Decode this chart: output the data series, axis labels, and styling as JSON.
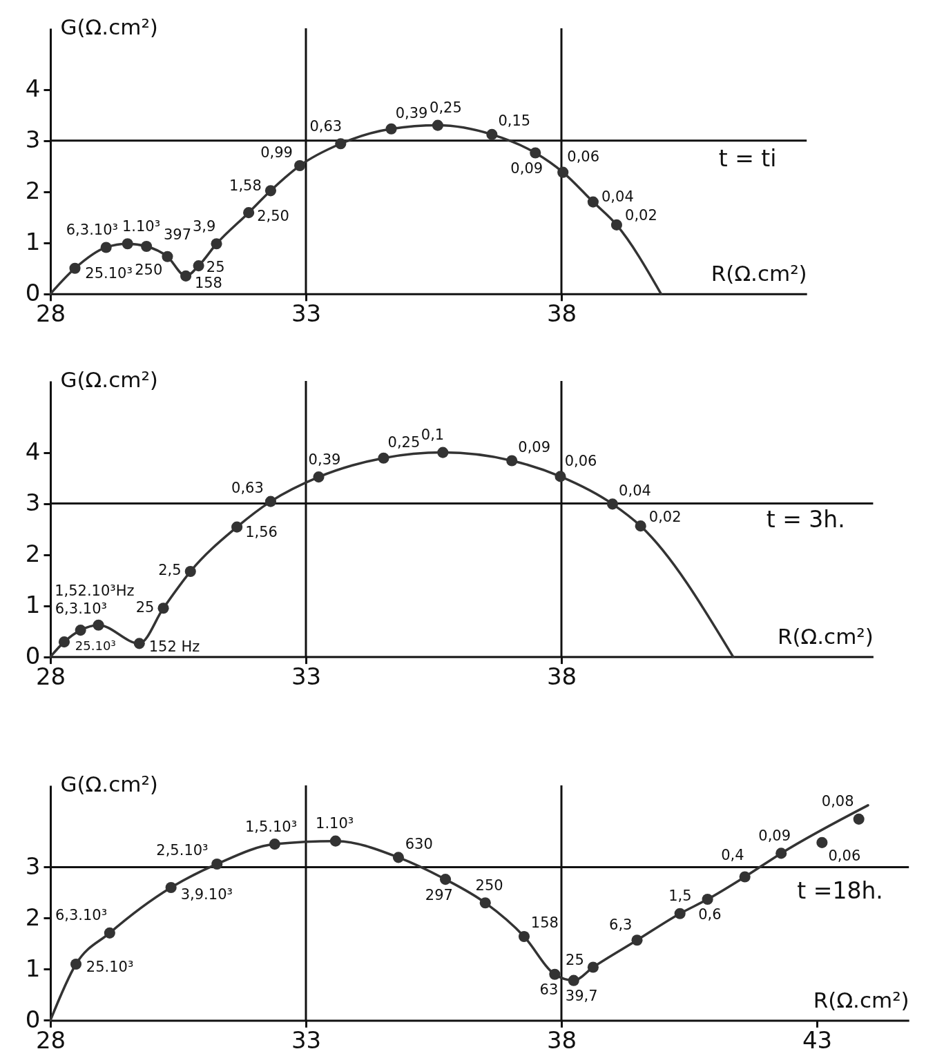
{
  "chart_data": [
    {
      "type": "scatter",
      "xlabel": "R(Ω.cm²)",
      "ylabel": "G(Ω.cm²)",
      "xlim": [
        28,
        42.8
      ],
      "ylim": [
        0,
        5.2
      ],
      "xticks": [
        28,
        33,
        38
      ],
      "yticks": [
        0,
        1,
        2,
        3,
        4
      ],
      "ref_lines": [
        {
          "axis": "x",
          "value": 33
        },
        {
          "axis": "x",
          "value": 38
        },
        {
          "axis": "y",
          "value": 3
        }
      ],
      "series": [
        {
          "type": "line",
          "color": "#333333",
          "marker": "none",
          "x": [
            28,
            28.48,
            29.09,
            29.51,
            29.88,
            30.29,
            30.65,
            30.9,
            31.25,
            31.88,
            32.31,
            32.88,
            33.68,
            34.67,
            35.58,
            36.64,
            37.49,
            38.03,
            38.62,
            39.08,
            39.95
          ],
          "values": [
            0,
            0.5,
            0.91,
            0.98,
            0.93,
            0.73,
            0.35,
            0.55,
            0.98,
            1.59,
            2.02,
            2.51,
            2.94,
            3.23,
            3.3,
            3.12,
            2.76,
            2.38,
            1.8,
            1.35,
            0
          ]
        },
        {
          "color": "#333333",
          "marker": "circle",
          "x": [
            28.48,
            29.09,
            29.51,
            29.88,
            30.29,
            30.65,
            30.9,
            31.25,
            31.88,
            32.31,
            32.88,
            33.68,
            34.67,
            35.58,
            36.64,
            37.49,
            38.03,
            38.62,
            39.08
          ],
          "values": [
            0.5,
            0.91,
            0.98,
            0.93,
            0.73,
            0.35,
            0.55,
            0.98,
            1.59,
            2.02,
            2.51,
            2.94,
            3.23,
            3.3,
            3.12,
            2.76,
            2.38,
            1.8,
            1.35
          ]
        }
      ],
      "annotations": [
        "t = ti",
        {
          "text": "25.10³",
          "x": 28.48,
          "y": 0.5
        },
        {
          "text": "6,3.10³",
          "x": 29.09,
          "y": 0.91
        },
        {
          "text": "1.10³",
          "x": 29.51,
          "y": 0.98
        },
        {
          "text": "397",
          "x": 29.88,
          "y": 0.93
        },
        {
          "text": "250",
          "x": 30.29,
          "y": 0.73
        },
        {
          "text": "158",
          "x": 30.65,
          "y": 0.35
        },
        {
          "text": "25",
          "x": 30.9,
          "y": 0.55
        },
        {
          "text": "3,9",
          "x": 31.25,
          "y": 0.98
        },
        {
          "text": "2,50",
          "x": 31.88,
          "y": 1.59
        },
        {
          "text": "1,58",
          "x": 32.31,
          "y": 2.02
        },
        {
          "text": "0,99",
          "x": 32.88,
          "y": 2.51
        },
        {
          "text": "0,63",
          "x": 33.68,
          "y": 2.94
        },
        {
          "text": "0,39",
          "x": 34.67,
          "y": 3.23
        },
        {
          "text": "0,25",
          "x": 35.58,
          "y": 3.3
        },
        {
          "text": "0,15",
          "x": 36.64,
          "y": 3.12
        },
        {
          "text": "0,09",
          "x": 37.49,
          "y": 2.76
        },
        {
          "text": "0,06",
          "x": 38.03,
          "y": 2.38
        },
        {
          "text": "0,04",
          "x": 38.62,
          "y": 1.8
        },
        {
          "text": "0,02",
          "x": 39.08,
          "y": 1.35
        }
      ]
    },
    {
      "type": "scatter",
      "xlabel": "R(Ω.cm²)",
      "ylabel": "G(Ω.cm²)",
      "xlim": [
        28,
        44.1
      ],
      "ylim": [
        0,
        5.4
      ],
      "xticks": [
        28,
        33,
        38
      ],
      "yticks": [
        0,
        1,
        2,
        3,
        4
      ],
      "ref_lines": [
        {
          "axis": "x",
          "value": 33
        },
        {
          "axis": "x",
          "value": 38
        },
        {
          "axis": "y",
          "value": 3
        }
      ],
      "series": [
        {
          "type": "line",
          "color": "#333333",
          "marker": "none",
          "x": [
            28,
            28.27,
            28.59,
            28.94,
            29.74,
            30.21,
            30.74,
            31.65,
            32.31,
            33.25,
            34.52,
            35.68,
            37.03,
            37.98,
            39.0,
            39.55,
            41.36
          ],
          "values": [
            0,
            0.29,
            0.52,
            0.62,
            0.26,
            0.95,
            1.67,
            2.54,
            3.04,
            3.52,
            3.89,
            4.0,
            3.84,
            3.53,
            2.99,
            2.56,
            0
          ]
        },
        {
          "color": "#333333",
          "marker": "circle",
          "x": [
            28.27,
            28.59,
            28.94,
            29.74,
            30.21,
            30.74,
            31.65,
            32.31,
            33.25,
            34.52,
            35.68,
            37.03,
            37.98,
            39.0,
            39.55
          ],
          "values": [
            0.29,
            0.52,
            0.62,
            0.26,
            0.95,
            1.67,
            2.54,
            3.04,
            3.52,
            3.89,
            4.0,
            3.84,
            3.53,
            2.99,
            2.56
          ]
        }
      ],
      "annotations": [
        "t = 3h.",
        {
          "text": "25.10³",
          "x": 28.27,
          "y": 0.29
        },
        {
          "text": "6,3.10³",
          "x": 28.59,
          "y": 0.52
        },
        {
          "text": "1,52.10³Hz",
          "x": 28.94,
          "y": 0.62
        },
        {
          "text": "152 Hz",
          "x": 29.74,
          "y": 0.26
        },
        {
          "text": "25",
          "x": 30.21,
          "y": 0.95
        },
        {
          "text": "2,5",
          "x": 30.74,
          "y": 1.67
        },
        {
          "text": "1,56",
          "x": 31.65,
          "y": 2.54
        },
        {
          "text": "0,63",
          "x": 32.31,
          "y": 3.04
        },
        {
          "text": "0,39",
          "x": 33.25,
          "y": 3.52
        },
        {
          "text": "0,25",
          "x": 34.52,
          "y": 3.89
        },
        {
          "text": "0,1",
          "x": 35.68,
          "y": 4.0
        },
        {
          "text": "0,09",
          "x": 37.03,
          "y": 3.84
        },
        {
          "text": "0,06",
          "x": 37.98,
          "y": 3.53
        },
        {
          "text": "0,04",
          "x": 39.0,
          "y": 2.99
        },
        {
          "text": "0,02",
          "x": 39.55,
          "y": 2.56
        }
      ]
    },
    {
      "type": "scatter",
      "xlabel": "R(Ω.cm²)",
      "ylabel": "G(Ω.cm²)",
      "xlim": [
        28,
        44.8
      ],
      "ylim": [
        0,
        4.6
      ],
      "xticks": [
        28,
        33,
        38,
        43
      ],
      "yticks": [
        0,
        1,
        2,
        3
      ],
      "ref_lines": [
        {
          "axis": "x",
          "value": 33
        },
        {
          "axis": "x",
          "value": 38
        },
        {
          "axis": "y",
          "value": 3
        }
      ],
      "series": [
        {
          "type": "line",
          "color": "#333333",
          "marker": "none",
          "x": [
            28,
            28.5,
            29.16,
            30.36,
            31.26,
            32.39,
            33.58,
            34.81,
            35.73,
            36.51,
            37.27,
            37.87,
            38.24,
            38.62,
            39.48,
            40.32,
            40.86,
            41.59,
            42.3,
            44.0
          ],
          "values": [
            0,
            1.1,
            1.71,
            2.6,
            3.06,
            3.45,
            3.51,
            3.19,
            2.76,
            2.3,
            1.64,
            0.9,
            0.78,
            1.04,
            1.57,
            2.09,
            2.37,
            2.81,
            3.27,
            4.21
          ]
        },
        {
          "color": "#333333",
          "marker": "circle",
          "x": [
            28.5,
            29.16,
            30.36,
            31.26,
            32.39,
            33.58,
            34.81,
            35.73,
            36.51,
            37.27,
            37.87,
            38.24,
            38.62,
            39.48,
            40.32,
            40.86,
            41.59,
            42.3,
            43.1,
            43.82
          ],
          "values": [
            1.1,
            1.71,
            2.6,
            3.06,
            3.45,
            3.51,
            3.19,
            2.76,
            2.3,
            1.64,
            0.9,
            0.78,
            1.04,
            1.57,
            2.09,
            2.37,
            2.81,
            3.27,
            3.48,
            3.94
          ]
        }
      ],
      "annotations": [
        "t =18h.",
        {
          "text": "25.10³",
          "x": 28.5,
          "y": 1.1
        },
        {
          "text": "6,3.10³",
          "x": 29.16,
          "y": 1.71
        },
        {
          "text": "3,9.10³",
          "x": 30.36,
          "y": 2.6
        },
        {
          "text": "2,5.10³",
          "x": 31.26,
          "y": 3.06
        },
        {
          "text": "1,5.10³",
          "x": 32.39,
          "y": 3.45
        },
        {
          "text": "1.10³",
          "x": 33.58,
          "y": 3.51
        },
        {
          "text": "630",
          "x": 34.81,
          "y": 3.19
        },
        {
          "text": "297",
          "x": 35.73,
          "y": 2.76
        },
        {
          "text": "250",
          "x": 36.51,
          "y": 2.3
        },
        {
          "text": "158",
          "x": 37.27,
          "y": 1.64
        },
        {
          "text": "63",
          "x": 37.87,
          "y": 0.9
        },
        {
          "text": "39,7",
          "x": 38.24,
          "y": 0.78
        },
        {
          "text": "25",
          "x": 38.62,
          "y": 1.04
        },
        {
          "text": "6,3",
          "x": 39.48,
          "y": 1.57
        },
        {
          "text": "1,5",
          "x": 40.32,
          "y": 2.09
        },
        {
          "text": "0,6",
          "x": 40.86,
          "y": 2.37
        },
        {
          "text": "0,4",
          "x": 41.59,
          "y": 2.81
        },
        {
          "text": "0,09",
          "x": 42.3,
          "y": 3.27
        },
        {
          "text": "0,06",
          "x": 43.1,
          "y": 3.48
        },
        {
          "text": "0,08",
          "x": 43.82,
          "y": 3.94
        }
      ]
    }
  ]
}
